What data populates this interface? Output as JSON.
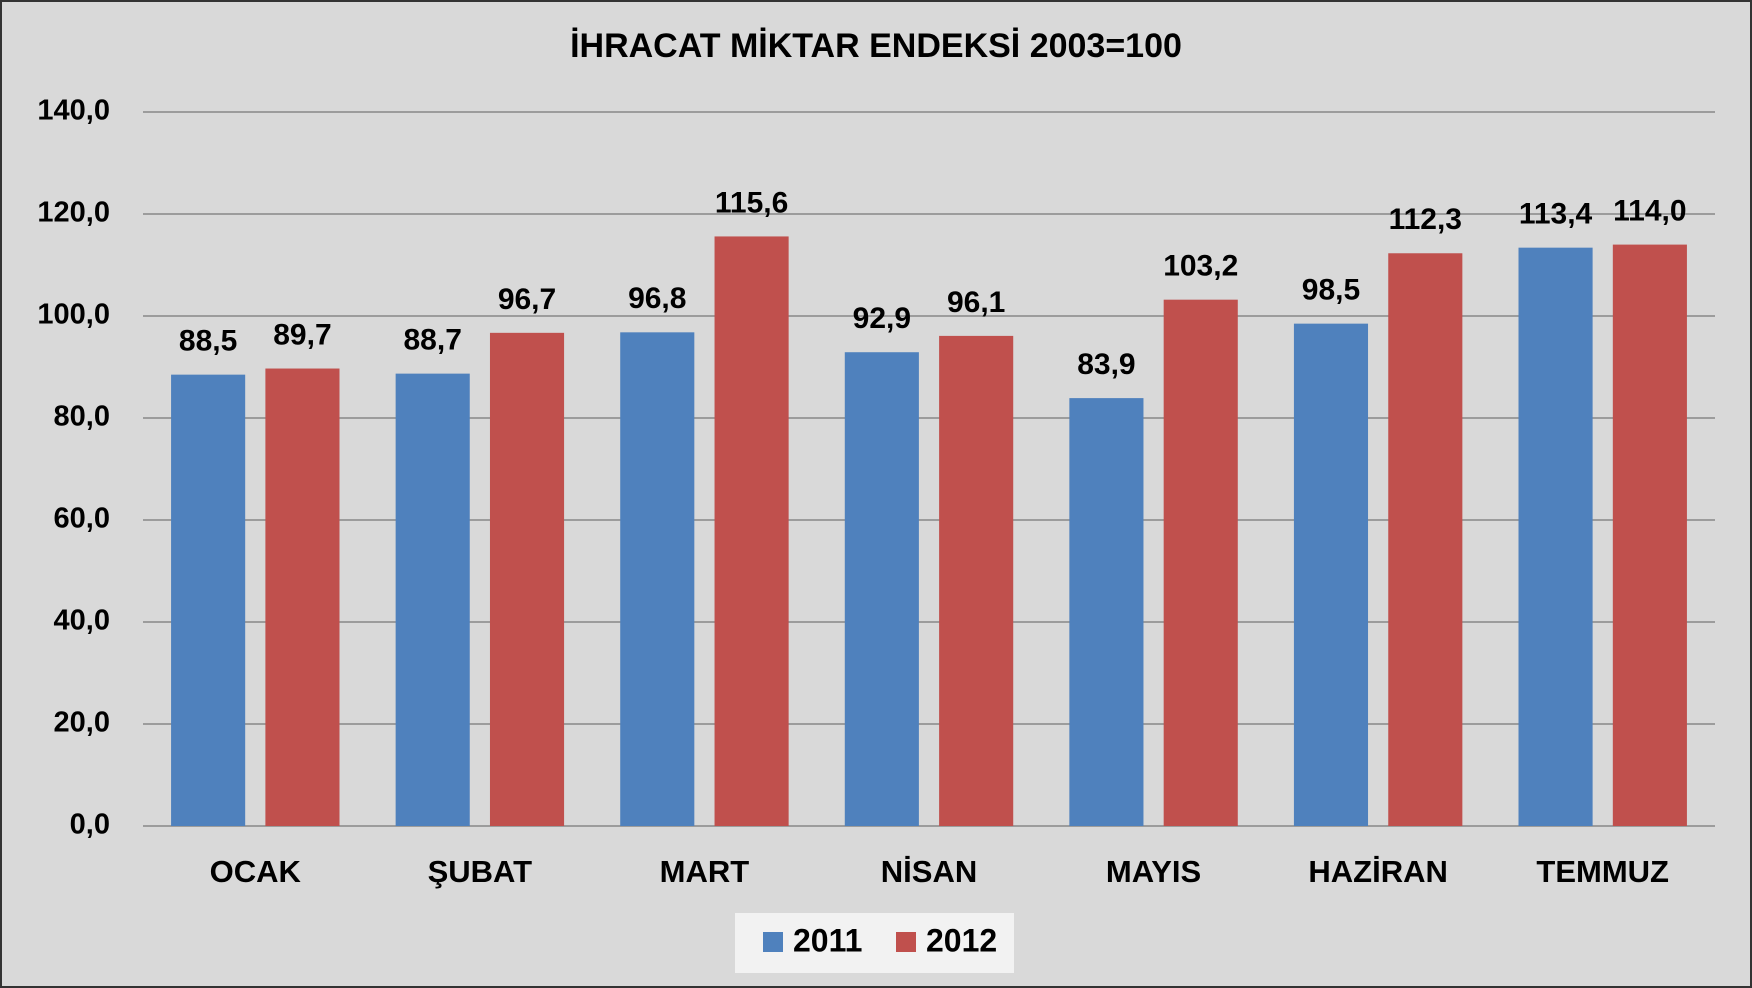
{
  "chart_data": {
    "type": "bar",
    "title": "İHRACAT MİKTAR ENDEKSİ 2003=100",
    "categories": [
      "OCAK",
      "ŞUBAT",
      "MART",
      "NİSAN",
      "MAYIS",
      "HAZİRAN",
      "TEMMUZ"
    ],
    "series": [
      {
        "name": "2011",
        "color": "#4f81bd",
        "values": [
          88.5,
          88.7,
          96.8,
          92.9,
          83.9,
          98.5,
          113.4
        ],
        "value_labels": [
          "88,5",
          "88,7",
          "96,8",
          "92,9",
          "83,9",
          "98,5",
          "113,4"
        ]
      },
      {
        "name": "2012",
        "color": "#c0504d",
        "values": [
          89.7,
          96.7,
          115.6,
          96.1,
          103.2,
          112.3,
          114.0
        ],
        "value_labels": [
          "89,7",
          "96,7",
          "115,6",
          "96,1",
          "103,2",
          "112,3",
          "114,0"
        ]
      }
    ],
    "ylim": [
      0,
      140
    ],
    "yticks": [
      {
        "value": 0,
        "label": "0,0"
      },
      {
        "value": 20,
        "label": "20,0"
      },
      {
        "value": 40,
        "label": "40,0"
      },
      {
        "value": 60,
        "label": "60,0"
      },
      {
        "value": 80,
        "label": "80,0"
      },
      {
        "value": 100,
        "label": "100,0"
      },
      {
        "value": 120,
        "label": "120,0"
      },
      {
        "value": 140,
        "label": "140,0"
      }
    ],
    "grid": true,
    "legend": "bottom"
  }
}
